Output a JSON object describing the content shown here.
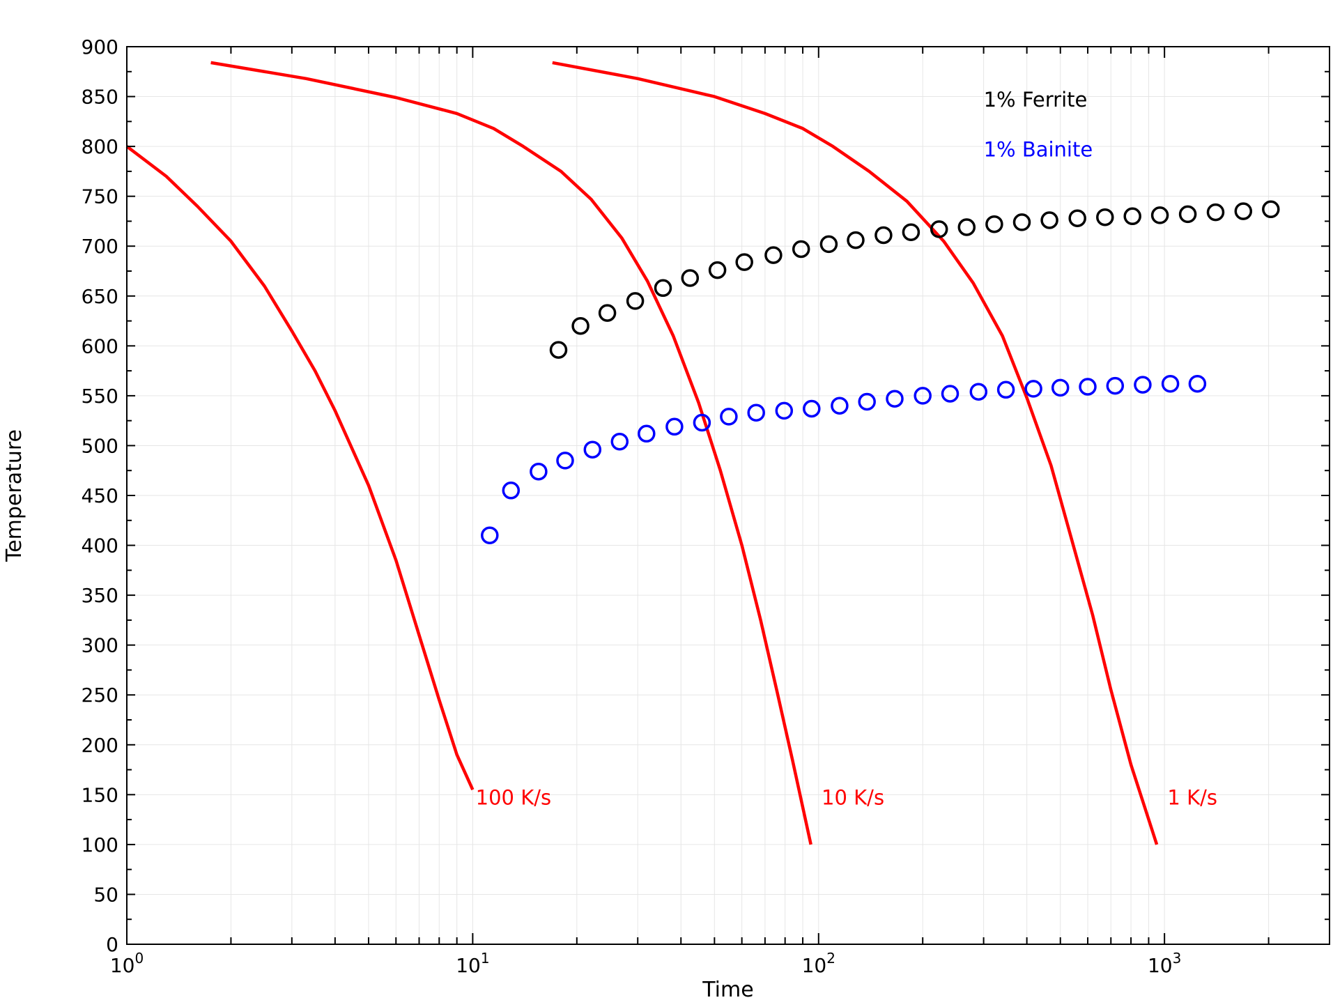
{
  "chart_data": {
    "type": "line",
    "x_scale": "log",
    "xlabel": "Time",
    "ylabel": "Temperature",
    "xlim": [
      1,
      3000
    ],
    "ylim": [
      0,
      900
    ],
    "grid": true,
    "y_ticks": [
      "0",
      "50",
      "100",
      "150",
      "200",
      "250",
      "300",
      "350",
      "400",
      "450",
      "500",
      "550",
      "600",
      "650",
      "700",
      "750",
      "800",
      "850",
      "900"
    ],
    "x_ticks": [
      {
        "value": 1,
        "base": "10",
        "exp": "0"
      },
      {
        "value": 10,
        "base": "10",
        "exp": "1"
      },
      {
        "value": 100,
        "base": "10",
        "exp": "2"
      },
      {
        "value": 1000,
        "base": "10",
        "exp": "3"
      }
    ],
    "series": [
      {
        "kind": "line",
        "color": "#ff0000",
        "points": [
          [
            1,
            800
          ],
          [
            1.3,
            770
          ],
          [
            1.6,
            740
          ],
          [
            2,
            705
          ],
          [
            2.5,
            660
          ],
          [
            3,
            615
          ],
          [
            3.5,
            575
          ],
          [
            4,
            535
          ],
          [
            5,
            460
          ],
          [
            6,
            385
          ],
          [
            7,
            310
          ],
          [
            8,
            245
          ],
          [
            9,
            190
          ],
          [
            10,
            155
          ]
        ]
      },
      {
        "kind": "line",
        "color": "#ff0000",
        "points": [
          [
            1.75,
            884
          ],
          [
            3.3,
            868
          ],
          [
            6,
            849
          ],
          [
            9,
            833
          ],
          [
            11.5,
            818
          ],
          [
            14,
            800
          ],
          [
            18,
            775
          ],
          [
            22,
            747
          ],
          [
            27,
            708
          ],
          [
            32,
            665
          ],
          [
            38,
            610
          ],
          [
            45,
            543
          ],
          [
            52,
            475
          ],
          [
            60,
            400
          ],
          [
            68,
            325
          ],
          [
            76,
            252
          ],
          [
            84,
            185
          ],
          [
            95,
            100
          ]
        ]
      },
      {
        "kind": "line",
        "color": "#ff0000",
        "points": [
          [
            17,
            884
          ],
          [
            30,
            868
          ],
          [
            50,
            850
          ],
          [
            70,
            833
          ],
          [
            90,
            818
          ],
          [
            110,
            800
          ],
          [
            140,
            775
          ],
          [
            180,
            745
          ],
          [
            230,
            705
          ],
          [
            280,
            663
          ],
          [
            340,
            610
          ],
          [
            400,
            548
          ],
          [
            470,
            480
          ],
          [
            540,
            405
          ],
          [
            620,
            330
          ],
          [
            700,
            255
          ],
          [
            800,
            180
          ],
          [
            950,
            100
          ]
        ]
      },
      {
        "kind": "scatter",
        "marker": "circle-open",
        "color": "#000000",
        "points": [
          [
            17.7,
            596
          ],
          [
            20.5,
            620
          ],
          [
            24.5,
            633
          ],
          [
            29.5,
            645
          ],
          [
            35.5,
            658
          ],
          [
            42.5,
            668
          ],
          [
            51,
            676
          ],
          [
            61,
            684
          ],
          [
            74,
            691
          ],
          [
            89,
            697
          ],
          [
            107,
            702
          ],
          [
            128,
            706
          ],
          [
            154,
            711
          ],
          [
            185,
            714
          ],
          [
            223,
            717
          ],
          [
            268,
            719
          ],
          [
            322,
            722
          ],
          [
            387,
            724
          ],
          [
            465,
            726
          ],
          [
            560,
            728
          ],
          [
            673,
            729
          ],
          [
            808,
            730
          ],
          [
            970,
            731
          ],
          [
            1168,
            732
          ],
          [
            1405,
            734
          ],
          [
            1690,
            735
          ],
          [
            2030,
            737
          ]
        ]
      },
      {
        "kind": "scatter",
        "marker": "circle-open",
        "color": "#0000ff",
        "points": [
          [
            11.2,
            410
          ],
          [
            12.9,
            455
          ],
          [
            15.5,
            474
          ],
          [
            18.5,
            485
          ],
          [
            22.2,
            496
          ],
          [
            26.6,
            504
          ],
          [
            31.8,
            512
          ],
          [
            38.3,
            519
          ],
          [
            46,
            523
          ],
          [
            55,
            529
          ],
          [
            66,
            533
          ],
          [
            79.5,
            535
          ],
          [
            95.5,
            537
          ],
          [
            115,
            540
          ],
          [
            138,
            544
          ],
          [
            166,
            547
          ],
          [
            200,
            550
          ],
          [
            240,
            552
          ],
          [
            290,
            554
          ],
          [
            348,
            556
          ],
          [
            418,
            557
          ],
          [
            500,
            558
          ],
          [
            600,
            559
          ],
          [
            720,
            560
          ],
          [
            865,
            561
          ],
          [
            1040,
            562
          ],
          [
            1245,
            562
          ]
        ]
      }
    ],
    "annotations": [
      {
        "text": "1% Ferrite",
        "color": "#000000",
        "x": 300,
        "y": 840
      },
      {
        "text": "1% Bainite",
        "color": "#0000ff",
        "x": 300,
        "y": 790
      },
      {
        "text": "100 K/s",
        "color": "#ff0000",
        "x": 10.2,
        "y": 140
      },
      {
        "text": "10 K/s",
        "color": "#ff0000",
        "x": 102,
        "y": 140
      },
      {
        "text": "1 K/s",
        "color": "#ff0000",
        "x": 1020,
        "y": 140
      }
    ]
  }
}
